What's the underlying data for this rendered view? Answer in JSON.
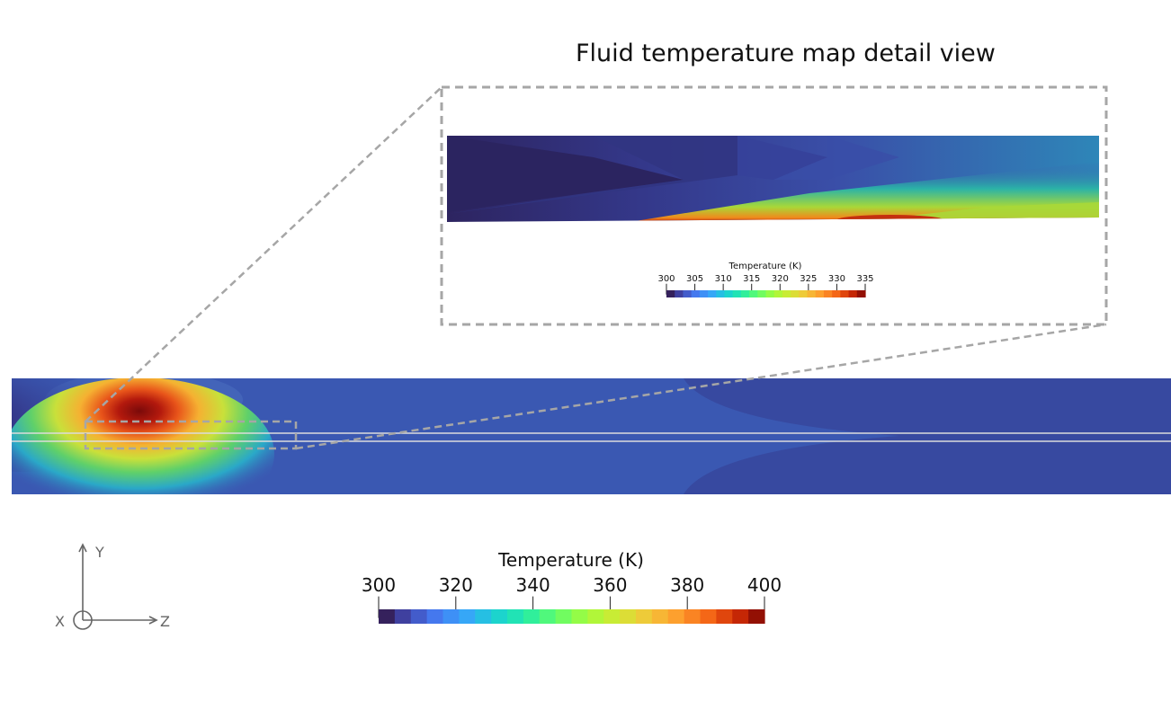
{
  "title": "Fluid temperature map detail view",
  "main_colorbar": {
    "label": "Temperature (K)",
    "ticks": [
      "300",
      "320",
      "340",
      "360",
      "380",
      "400"
    ],
    "min": 300,
    "max": 400,
    "bands": 24
  },
  "detail_colorbar": {
    "label": "Temperature (K)",
    "ticks": [
      "300",
      "305",
      "310",
      "315",
      "320",
      "325",
      "330",
      "335"
    ],
    "min": 300,
    "max": 335,
    "bands": 24
  },
  "axes_triad": {
    "y_label": "Y",
    "z_label": "Z",
    "x_label": "X"
  },
  "colors": {
    "background": "#ffffff",
    "zoom_frame": "#a6a6a6",
    "domain_base": "#3a58b2",
    "hot_spot": "#8b0c0c"
  }
}
